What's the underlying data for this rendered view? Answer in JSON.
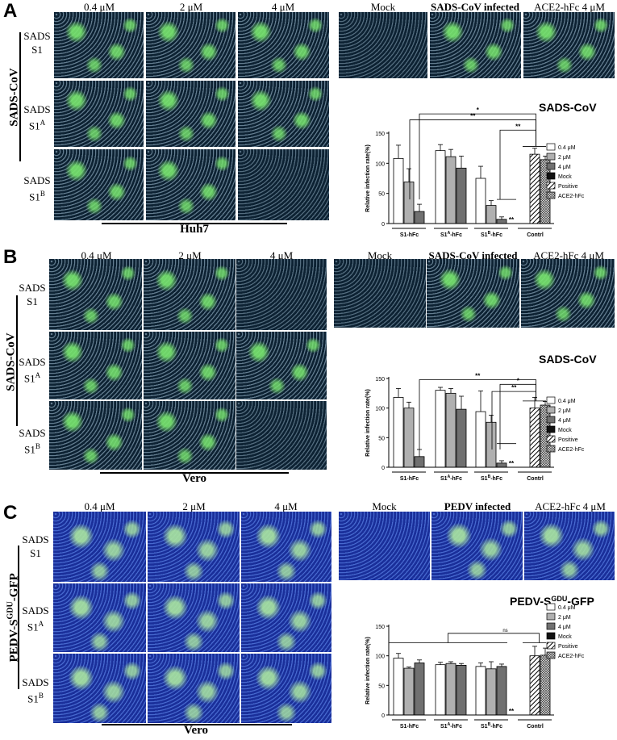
{
  "panels": [
    {
      "label": "A",
      "conc_headers": [
        "0.4 μM",
        "2 μM",
        "4 μM"
      ],
      "ctrl_headers": [
        {
          "text": "Mock",
          "bold": false
        },
        {
          "text": "SADS-CoV infected",
          "bold": true
        },
        {
          "text": "ACE2-hFc 4 μM",
          "bold": false
        }
      ],
      "rows": [
        {
          "line1": "SADS",
          "line2": "S1",
          "sup": ""
        },
        {
          "line1": "SADS",
          "line2": "S1",
          "sup": "A"
        },
        {
          "line1": "SADS",
          "line2": "S1",
          "sup": "B"
        }
      ],
      "virus_label": "SADS-CoV",
      "cell_label": "Huh7",
      "chart_title": "SADS-CoV",
      "chart_title_sup": ""
    },
    {
      "label": "B",
      "conc_headers": [
        "0.4 μM",
        "2 μM",
        "4 μM"
      ],
      "ctrl_headers": [
        {
          "text": "Mock",
          "bold": false
        },
        {
          "text": "SADS-CoV infected",
          "bold": true
        },
        {
          "text": "ACE2-hFc 4 μM",
          "bold": false
        }
      ],
      "rows": [
        {
          "line1": "SADS",
          "line2": "S1",
          "sup": ""
        },
        {
          "line1": "SADS",
          "line2": "S1",
          "sup": "A"
        },
        {
          "line1": "SADS",
          "line2": "S1",
          "sup": "B"
        }
      ],
      "virus_label": "SADS-CoV",
      "cell_label": "Vero",
      "chart_title": "SADS-CoV",
      "chart_title_sup": ""
    },
    {
      "label": "C",
      "conc_headers": [
        "0.4 μM",
        "2 μM",
        "4 μM"
      ],
      "ctrl_headers": [
        {
          "text": "Mock",
          "bold": false
        },
        {
          "text": "PEDV infected",
          "bold": true
        },
        {
          "text": "ACE2-hFc 4 μM",
          "bold": false
        }
      ],
      "rows": [
        {
          "line1": "SADS",
          "line2": "S1",
          "sup": ""
        },
        {
          "line1": "SADS",
          "line2": "S1",
          "sup": "A"
        },
        {
          "line1": "SADS",
          "line2": "S1",
          "sup": "B"
        }
      ],
      "virus_label": "PEDV-S",
      "virus_label_sup": "GDU",
      "virus_label_tail": "-GFP",
      "cell_label": "Vero",
      "chart_title": "PEDV-S",
      "chart_title_sup": "GDU",
      "chart_title_tail": "-GFP"
    }
  ],
  "chart_data": [
    {
      "type": "bar",
      "panel": "A",
      "ylabel": "Relative infection rate(%)",
      "ylim": [
        0,
        150
      ],
      "yticks": [
        0,
        50,
        100,
        150
      ],
      "groups": [
        "S1-hFc",
        "S1A-hFc",
        "S1B-hFc",
        "Contrl"
      ],
      "group_sup": [
        "",
        "A",
        "B",
        ""
      ],
      "series": [
        {
          "name": "0.4 μM",
          "values": [
            108,
            121,
            75,
            null
          ],
          "errors": [
            22,
            10,
            20,
            null
          ]
        },
        {
          "name": "2 μM",
          "values": [
            69,
            111,
            30,
            null
          ],
          "errors": [
            22,
            12,
            8,
            null
          ]
        },
        {
          "name": "4 μM",
          "values": [
            20,
            92,
            7,
            null
          ],
          "errors": [
            12,
            20,
            4,
            null
          ]
        },
        {
          "name": "Mock",
          "values": [
            null,
            null,
            null,
            0
          ],
          "errors": [
            null,
            null,
            null,
            0
          ]
        },
        {
          "name": "Positive",
          "values": [
            null,
            null,
            null,
            115
          ],
          "errors": [
            null,
            null,
            null,
            10
          ]
        },
        {
          "name": "ACE2-hFc",
          "values": [
            null,
            null,
            null,
            106
          ],
          "errors": [
            null,
            null,
            null,
            6
          ]
        }
      ],
      "significance": [
        "*",
        "**",
        "**",
        "**"
      ]
    },
    {
      "type": "bar",
      "panel": "B",
      "ylabel": "Relative infection rate(%)",
      "ylim": [
        0,
        150
      ],
      "yticks": [
        0,
        50,
        100,
        150
      ],
      "groups": [
        "S1-hFc",
        "S1A-hFc",
        "S1B-hFc",
        "Contrl"
      ],
      "group_sup": [
        "",
        "A",
        "B",
        ""
      ],
      "series": [
        {
          "name": "0.4 μM",
          "values": [
            118,
            130,
            94,
            null
          ],
          "errors": [
            15,
            5,
            35,
            null
          ]
        },
        {
          "name": "2 μM",
          "values": [
            100,
            125,
            76,
            null
          ],
          "errors": [
            10,
            8,
            12,
            null
          ]
        },
        {
          "name": "4 μM",
          "values": [
            18,
            98,
            7,
            null
          ],
          "errors": [
            12,
            22,
            4,
            null
          ]
        },
        {
          "name": "Mock",
          "values": [
            null,
            null,
            null,
            0
          ],
          "errors": [
            null,
            null,
            null,
            0
          ]
        },
        {
          "name": "Positive",
          "values": [
            null,
            null,
            null,
            100
          ],
          "errors": [
            null,
            null,
            null,
            18
          ]
        },
        {
          "name": "ACE2-hFc",
          "values": [
            null,
            null,
            null,
            105
          ],
          "errors": [
            null,
            null,
            null,
            6
          ]
        }
      ],
      "significance": [
        "**",
        "*",
        "**",
        "**"
      ]
    },
    {
      "type": "bar",
      "panel": "C",
      "ylabel": "Relative infection rate(%)",
      "ylim": [
        0,
        150
      ],
      "yticks": [
        0,
        50,
        100,
        150
      ],
      "groups": [
        "S1-hFc",
        "S1A-hFc",
        "S1B-hFc",
        "Contrl"
      ],
      "group_sup": [
        "",
        "A",
        "B",
        ""
      ],
      "series": [
        {
          "name": "0.4 μM",
          "values": [
            96,
            85,
            82,
            null
          ],
          "errors": [
            8,
            4,
            6,
            null
          ]
        },
        {
          "name": "2 μM",
          "values": [
            79,
            87,
            78,
            null
          ],
          "errors": [
            2,
            3,
            12,
            null
          ]
        },
        {
          "name": "4 μM",
          "values": [
            88,
            84,
            82,
            null
          ],
          "errors": [
            5,
            3,
            4,
            null
          ]
        },
        {
          "name": "Mock",
          "values": [
            null,
            null,
            null,
            0
          ],
          "errors": [
            null,
            null,
            null,
            0
          ]
        },
        {
          "name": "Positive",
          "values": [
            null,
            null,
            null,
            100
          ],
          "errors": [
            null,
            null,
            null,
            16
          ]
        },
        {
          "name": "ACE2-hFc",
          "values": [
            null,
            null,
            null,
            101
          ],
          "errors": [
            null,
            null,
            null,
            12
          ]
        }
      ],
      "significance": [
        "ns",
        "**"
      ]
    }
  ],
  "legend_fills": [
    "#ffffff",
    "#b0b0b0",
    "#707070",
    "#111111",
    "hatch",
    "cross"
  ]
}
